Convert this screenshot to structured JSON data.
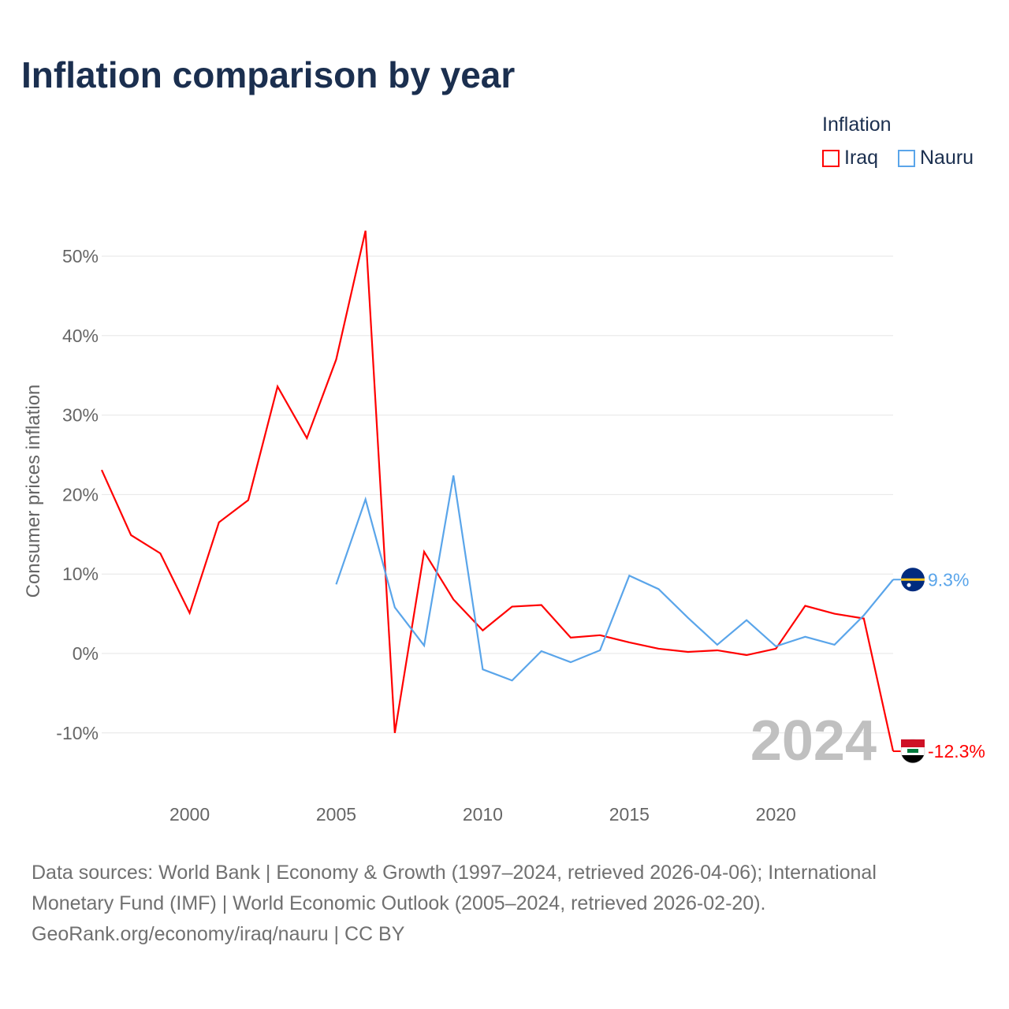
{
  "title": "Inflation comparison by year",
  "legend": {
    "title": "Inflation",
    "items": [
      {
        "name": "Iraq",
        "color": "#ff0000"
      },
      {
        "name": "Nauru",
        "color": "#5aa5ea"
      }
    ]
  },
  "year_watermark": "2024",
  "source_lines": [
    "Data sources: World Bank | Economy & Growth (1997–2024, retrieved 2026-04-06); International",
    "Monetary Fund (IMF) | World Economic Outlook (2005–2024, retrieved 2026-02-20).",
    "GeoRank.org/economy/iraq/nauru | CC BY"
  ],
  "chart_data": {
    "type": "line",
    "ylabel": "Consumer prices inflation",
    "xlabel": "",
    "xlim": [
      1997,
      2024
    ],
    "ylim": [
      -15,
      55
    ],
    "x_ticks": [
      "2000",
      "2005",
      "2010",
      "2015",
      "2020"
    ],
    "y_ticks": [
      {
        "v": 50,
        "label": "50%"
      },
      {
        "v": 40,
        "label": "40%"
      },
      {
        "v": 30,
        "label": "30%"
      },
      {
        "v": 20,
        "label": "20%"
      },
      {
        "v": 10,
        "label": "10%"
      },
      {
        "v": 0,
        "label": "0%"
      },
      {
        "v": -10,
        "label": "-10%"
      }
    ],
    "series": [
      {
        "name": "Iraq",
        "color": "#ff0000",
        "end_label": "-12.3%",
        "x": [
          1997,
          1998,
          1999,
          2000,
          2001,
          2002,
          2003,
          2004,
          2005,
          2006,
          2007,
          2008,
          2009,
          2010,
          2011,
          2012,
          2013,
          2014,
          2015,
          2016,
          2017,
          2018,
          2019,
          2020,
          2021,
          2022,
          2023,
          2024
        ],
        "values": [
          23.1,
          14.9,
          12.6,
          5.1,
          16.5,
          19.3,
          33.6,
          27.1,
          37.0,
          53.2,
          -10.0,
          12.8,
          6.8,
          2.9,
          5.9,
          6.1,
          2.0,
          2.3,
          1.4,
          0.6,
          0.2,
          0.4,
          -0.2,
          0.6,
          6.0,
          5.0,
          4.4,
          -12.3
        ]
      },
      {
        "name": "Nauru",
        "color": "#5aa5ea",
        "end_label": "9.3%",
        "x": [
          2005,
          2006,
          2007,
          2008,
          2009,
          2010,
          2011,
          2012,
          2013,
          2014,
          2015,
          2016,
          2017,
          2018,
          2019,
          2020,
          2021,
          2022,
          2023,
          2024
        ],
        "values": [
          8.7,
          19.4,
          5.8,
          1.0,
          22.4,
          -2.0,
          -3.4,
          0.3,
          -1.1,
          0.4,
          9.8,
          8.1,
          4.5,
          1.1,
          4.2,
          0.9,
          2.1,
          1.1,
          4.8,
          9.3
        ]
      }
    ]
  }
}
